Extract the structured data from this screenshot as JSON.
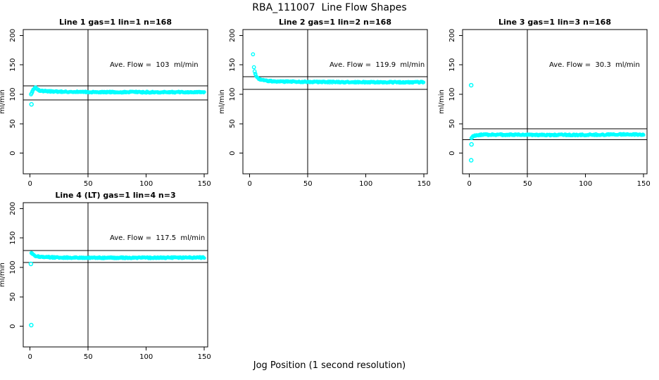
{
  "figure": {
    "title": "RBA_111007  Line Flow Shapes",
    "xlabel": "Jog Position (1 second resolution)",
    "background_color": "#ffffff",
    "point_color": "#00ffff",
    "axis_color": "#000000"
  },
  "chart_data": [
    {
      "type": "scatter",
      "title": "Line 1 gas=1 lin=1 n=168",
      "ylabel": "ml/min",
      "annotation": "Ave. Flow =  103  ml/min",
      "ave_flow": 103,
      "n": 168,
      "xlim": [
        -5.9,
        152.9
      ],
      "ylim": [
        -35,
        210
      ],
      "xticks": [
        0,
        50,
        100,
        150
      ],
      "yticks": [
        0,
        50,
        100,
        150,
        200
      ],
      "vline_x": 50,
      "hlines": [
        114.3,
        90.4
      ],
      "head_points": [
        [
          0.8,
          100
        ],
        [
          1.4,
          102
        ],
        [
          2,
          105
        ]
      ],
      "band_anchors": [
        [
          2,
          105
        ],
        [
          3,
          109
        ],
        [
          4,
          112
        ],
        [
          4.5,
          112.5
        ],
        [
          5.5,
          110.5
        ],
        [
          6.5,
          108
        ],
        [
          8,
          106.5
        ],
        [
          11,
          105.5
        ],
        [
          16,
          105
        ],
        [
          25,
          104.5
        ],
        [
          45,
          104
        ],
        [
          80,
          103.6
        ],
        [
          150,
          103.7
        ]
      ],
      "outliers": [
        [
          1.2,
          83
        ]
      ]
    },
    {
      "type": "scatter",
      "title": "Line 2 gas=1 lin=2 n=168",
      "ylabel": "ml/min",
      "annotation": "Ave. Flow =  119.9  ml/min",
      "ave_flow": 119.9,
      "n": 168,
      "xlim": [
        -5.9,
        152.9
      ],
      "ylim": [
        -35,
        210
      ],
      "xticks": [
        0,
        50,
        100,
        150
      ],
      "yticks": [
        0,
        50,
        100,
        150,
        200
      ],
      "vline_x": 50,
      "hlines": [
        129.9,
        108.4
      ],
      "head_points": [
        [
          2.8,
          168
        ],
        [
          3.6,
          146
        ],
        [
          4.2,
          139
        ],
        [
          4.8,
          135
        ]
      ],
      "band_anchors": [
        [
          5,
          133
        ],
        [
          6,
          130
        ],
        [
          7,
          127.5
        ],
        [
          8,
          126
        ],
        [
          10,
          124.5
        ],
        [
          13,
          123.2
        ],
        [
          18,
          122.4
        ],
        [
          25,
          121.8
        ],
        [
          40,
          121.2
        ],
        [
          70,
          120.8
        ],
        [
          110,
          120.5
        ],
        [
          150,
          120.6
        ]
      ],
      "outliers": []
    },
    {
      "type": "scatter",
      "title": "Line 3 gas=1 lin=3 n=168",
      "ylabel": "ml/min",
      "annotation": "Ave. Flow =  30.3  ml/min",
      "ave_flow": 30.3,
      "n": 168,
      "xlim": [
        -5.9,
        152.9
      ],
      "ylim": [
        -35,
        210
      ],
      "xticks": [
        0,
        50,
        100,
        150
      ],
      "yticks": [
        0,
        50,
        100,
        150,
        200
      ],
      "vline_x": 50,
      "hlines": [
        41.5,
        23
      ],
      "head_points": [
        [
          1.8,
          25.5
        ],
        [
          2.4,
          27
        ]
      ],
      "band_anchors": [
        [
          2.5,
          27.5
        ],
        [
          4,
          29.5
        ],
        [
          6,
          30.5
        ],
        [
          10,
          31.2
        ],
        [
          20,
          31.5
        ],
        [
          40,
          31.2
        ],
        [
          70,
          31
        ],
        [
          100,
          31.2
        ],
        [
          125,
          31.8
        ],
        [
          150,
          31.8
        ]
      ],
      "outliers": [
        [
          1.5,
          115.5
        ],
        [
          1.8,
          15
        ],
        [
          1.5,
          -12
        ]
      ]
    },
    {
      "type": "scatter",
      "title": "Line 4 (LT) gas=1 lin=4 n=3",
      "ylabel": "ml/min",
      "annotation": "Ave. Flow =  117.5  ml/min",
      "ave_flow": 117.5,
      "n": 3,
      "xlim": [
        -5.9,
        152.9
      ],
      "ylim": [
        -35,
        210
      ],
      "xticks": [
        0,
        50,
        100,
        150
      ],
      "yticks": [
        0,
        50,
        100,
        150,
        200
      ],
      "vline_x": 50,
      "hlines": [
        128.7,
        108.4
      ],
      "head_points": [
        [
          1.2,
          124.5
        ],
        [
          1.8,
          123.5
        ]
      ],
      "band_anchors": [
        [
          2,
          123
        ],
        [
          3,
          121.5
        ],
        [
          4,
          120.2
        ],
        [
          6,
          118.8
        ],
        [
          9,
          118
        ],
        [
          14,
          117.4
        ],
        [
          25,
          116.8
        ],
        [
          50,
          116.4
        ],
        [
          100,
          116.4
        ],
        [
          150,
          116.8
        ]
      ],
      "outliers": [
        [
          0.7,
          106
        ],
        [
          1,
          2
        ]
      ]
    }
  ]
}
